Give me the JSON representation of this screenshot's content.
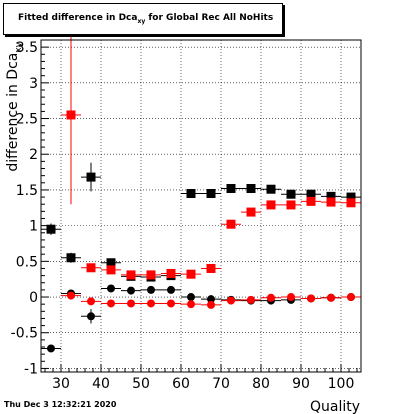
{
  "title": {
    "prefix": "Fitted difference in Dca",
    "subscript": "xy",
    "suffix": " for Global Rec All NoHits"
  },
  "footer": "Thu Dec  3 12:32:21 2020",
  "colors": {
    "black_series": "#000000",
    "red_series": "#ff0000",
    "grid": "#000000"
  },
  "chart_data": {
    "type": "scatter",
    "title": "Fitted difference in Dca_xy for Global Rec All NoHits",
    "xlabel": "Quality",
    "ylabel": "difference in Dca_xy",
    "xlim": [
      25,
      105
    ],
    "ylim": [
      -1.05,
      3.6
    ],
    "x_ticks": [
      30,
      40,
      50,
      60,
      70,
      80,
      90,
      100
    ],
    "y_ticks": [
      -1,
      -0.5,
      0,
      0.5,
      1,
      1.5,
      2,
      2.5,
      3,
      3.5
    ],
    "y_tick_labels": [
      "-1",
      "-0.5",
      "0",
      "0.5",
      "1",
      "1.5",
      "2",
      "2.5",
      "3",
      "3.5"
    ],
    "grid": true,
    "series": [
      {
        "color": "#000000",
        "marker": "square",
        "x_err": 2.5,
        "points": [
          {
            "x": 27.5,
            "y": 0.95,
            "err": 0.08
          },
          {
            "x": 32.5,
            "y": 0.55,
            "err": 0.07
          },
          {
            "x": 37.5,
            "y": 1.68,
            "err": 0.2
          },
          {
            "x": 42.5,
            "y": 0.48,
            "err": 0.03
          },
          {
            "x": 47.5,
            "y": 0.29,
            "err": 0.03
          },
          {
            "x": 52.5,
            "y": 0.28,
            "err": 0.02
          },
          {
            "x": 57.5,
            "y": 0.3,
            "err": 0.02
          },
          {
            "x": 62.5,
            "y": 1.45,
            "err": 0.02
          },
          {
            "x": 67.5,
            "y": 1.45,
            "err": 0.02
          },
          {
            "x": 72.5,
            "y": 1.52,
            "err": 0.02
          },
          {
            "x": 77.5,
            "y": 1.52,
            "err": 0.02
          },
          {
            "x": 82.5,
            "y": 1.51,
            "err": 0.02
          },
          {
            "x": 87.5,
            "y": 1.44,
            "err": 0.02
          },
          {
            "x": 92.5,
            "y": 1.44,
            "err": 0.02
          },
          {
            "x": 97.5,
            "y": 1.41,
            "err": 0.02
          },
          {
            "x": 102.5,
            "y": 1.4,
            "err": 0.02
          }
        ]
      },
      {
        "color": "#ff0000",
        "marker": "square",
        "x_err": 2.5,
        "points": [
          {
            "x": 32.5,
            "y": 2.55,
            "err": 1.25
          },
          {
            "x": 37.5,
            "y": 0.41,
            "err": 0.02
          },
          {
            "x": 42.5,
            "y": 0.38,
            "err": 0.02
          },
          {
            "x": 47.5,
            "y": 0.31,
            "err": 0.02
          },
          {
            "x": 52.5,
            "y": 0.31,
            "err": 0.02
          },
          {
            "x": 57.5,
            "y": 0.33,
            "err": 0.02
          },
          {
            "x": 62.5,
            "y": 0.32,
            "err": 0.02
          },
          {
            "x": 67.5,
            "y": 0.4,
            "err": 0.02
          },
          {
            "x": 72.5,
            "y": 1.02,
            "err": 0.02
          },
          {
            "x": 77.5,
            "y": 1.19,
            "err": 0.02
          },
          {
            "x": 82.5,
            "y": 1.29,
            "err": 0.02
          },
          {
            "x": 87.5,
            "y": 1.29,
            "err": 0.02
          },
          {
            "x": 92.5,
            "y": 1.34,
            "err": 0.02
          },
          {
            "x": 97.5,
            "y": 1.33,
            "err": 0.02
          },
          {
            "x": 102.5,
            "y": 1.32,
            "err": 0.02
          }
        ]
      },
      {
        "color": "#000000",
        "marker": "circle",
        "x_err": 2.5,
        "points": [
          {
            "x": 27.5,
            "y": -0.72,
            "err": 0.05
          },
          {
            "x": 32.5,
            "y": 0.05,
            "err": 0.05
          },
          {
            "x": 37.5,
            "y": -0.27,
            "err": 0.1
          },
          {
            "x": 42.5,
            "y": 0.12,
            "err": 0.02
          },
          {
            "x": 47.5,
            "y": 0.09,
            "err": 0.02
          },
          {
            "x": 52.5,
            "y": 0.1,
            "err": 0.02
          },
          {
            "x": 57.5,
            "y": 0.1,
            "err": 0.02
          },
          {
            "x": 62.5,
            "y": 0.0,
            "err": 0.01
          },
          {
            "x": 67.5,
            "y": -0.03,
            "err": 0.01
          },
          {
            "x": 72.5,
            "y": -0.04,
            "err": 0.01
          },
          {
            "x": 77.5,
            "y": -0.05,
            "err": 0.01
          },
          {
            "x": 82.5,
            "y": -0.05,
            "err": 0.01
          },
          {
            "x": 87.5,
            "y": -0.04,
            "err": 0.01
          },
          {
            "x": 92.5,
            "y": -0.02,
            "err": 0.01
          },
          {
            "x": 97.5,
            "y": -0.01,
            "err": 0.01
          },
          {
            "x": 102.5,
            "y": 0.0,
            "err": 0.01
          }
        ]
      },
      {
        "color": "#ff0000",
        "marker": "circle",
        "x_err": 2.5,
        "points": [
          {
            "x": 32.5,
            "y": 0.02,
            "err": 0.03
          },
          {
            "x": 37.5,
            "y": -0.06,
            "err": 0.02
          },
          {
            "x": 42.5,
            "y": -0.09,
            "err": 0.01
          },
          {
            "x": 47.5,
            "y": -0.09,
            "err": 0.01
          },
          {
            "x": 52.5,
            "y": -0.09,
            "err": 0.01
          },
          {
            "x": 57.5,
            "y": -0.09,
            "err": 0.01
          },
          {
            "x": 62.5,
            "y": -0.1,
            "err": 0.01
          },
          {
            "x": 67.5,
            "y": -0.11,
            "err": 0.01
          },
          {
            "x": 72.5,
            "y": -0.05,
            "err": 0.01
          },
          {
            "x": 77.5,
            "y": -0.04,
            "err": 0.01
          },
          {
            "x": 82.5,
            "y": -0.01,
            "err": 0.01
          },
          {
            "x": 87.5,
            "y": 0.0,
            "err": 0.01
          },
          {
            "x": 92.5,
            "y": -0.02,
            "err": 0.01
          },
          {
            "x": 97.5,
            "y": -0.01,
            "err": 0.01
          },
          {
            "x": 102.5,
            "y": 0.0,
            "err": 0.01
          }
        ]
      }
    ]
  }
}
